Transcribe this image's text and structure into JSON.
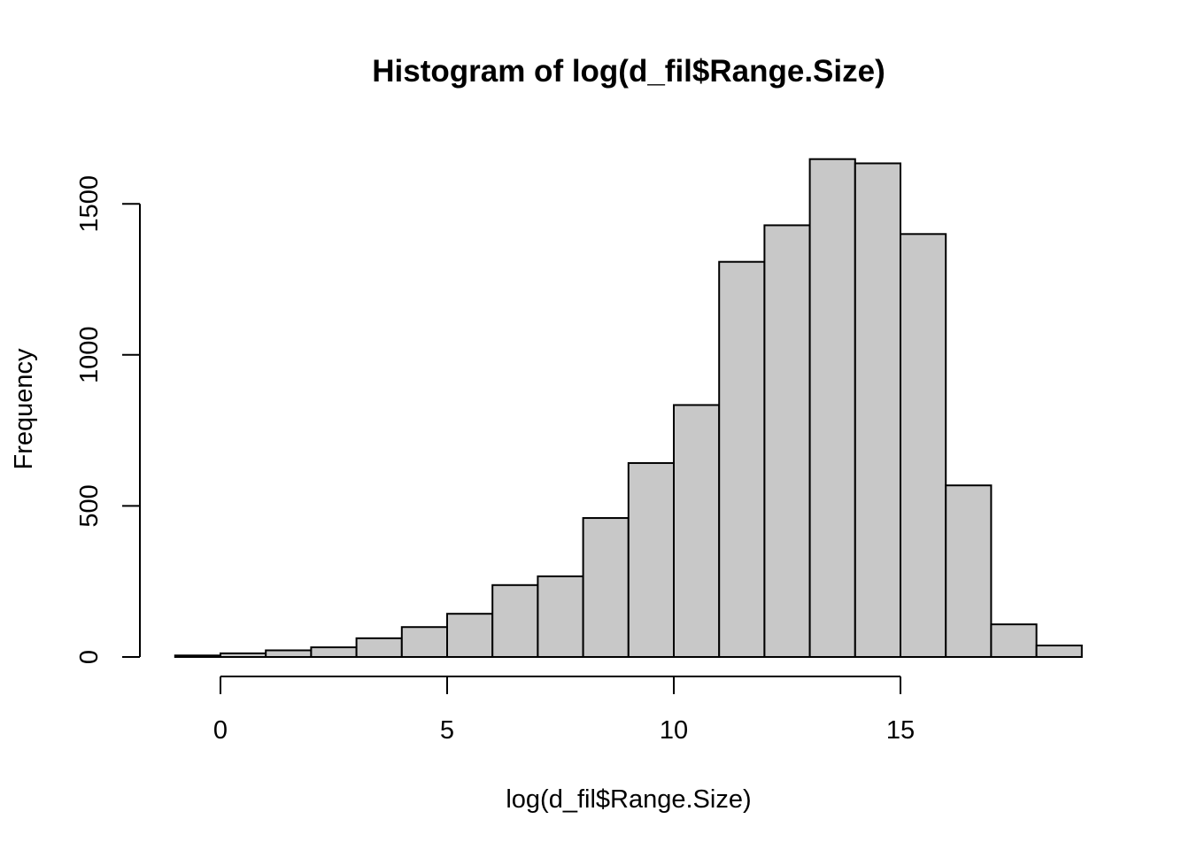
{
  "chart_data": {
    "type": "bar",
    "title": "Histogram of log(d_fil$Range.Size)",
    "xlabel": "log(d_fil$Range.Size)",
    "ylabel": "Frequency",
    "bin_edges": [
      -1,
      0,
      1,
      2,
      3,
      4,
      5,
      6,
      7,
      8,
      9,
      10,
      11,
      12,
      13,
      14,
      15,
      16,
      17,
      18,
      19
    ],
    "values": [
      5,
      12,
      22,
      32,
      62,
      99,
      143,
      238,
      267,
      460,
      642,
      834,
      1308,
      1429,
      1648,
      1634,
      1400,
      568,
      108,
      38
    ],
    "xlim": [
      -1,
      19
    ],
    "ylim": [
      0,
      1650
    ],
    "x_ticks": [
      0,
      5,
      10,
      15
    ],
    "x_tick_labels": [
      "0",
      "5",
      "10",
      "15"
    ],
    "y_ticks": [
      0,
      500,
      1000,
      1500
    ],
    "y_tick_labels": [
      "0",
      "500",
      "1000",
      "1500"
    ],
    "bar_fill": "#c8c8c8",
    "bar_stroke": "#000000",
    "grid": false,
    "legend": "none"
  }
}
